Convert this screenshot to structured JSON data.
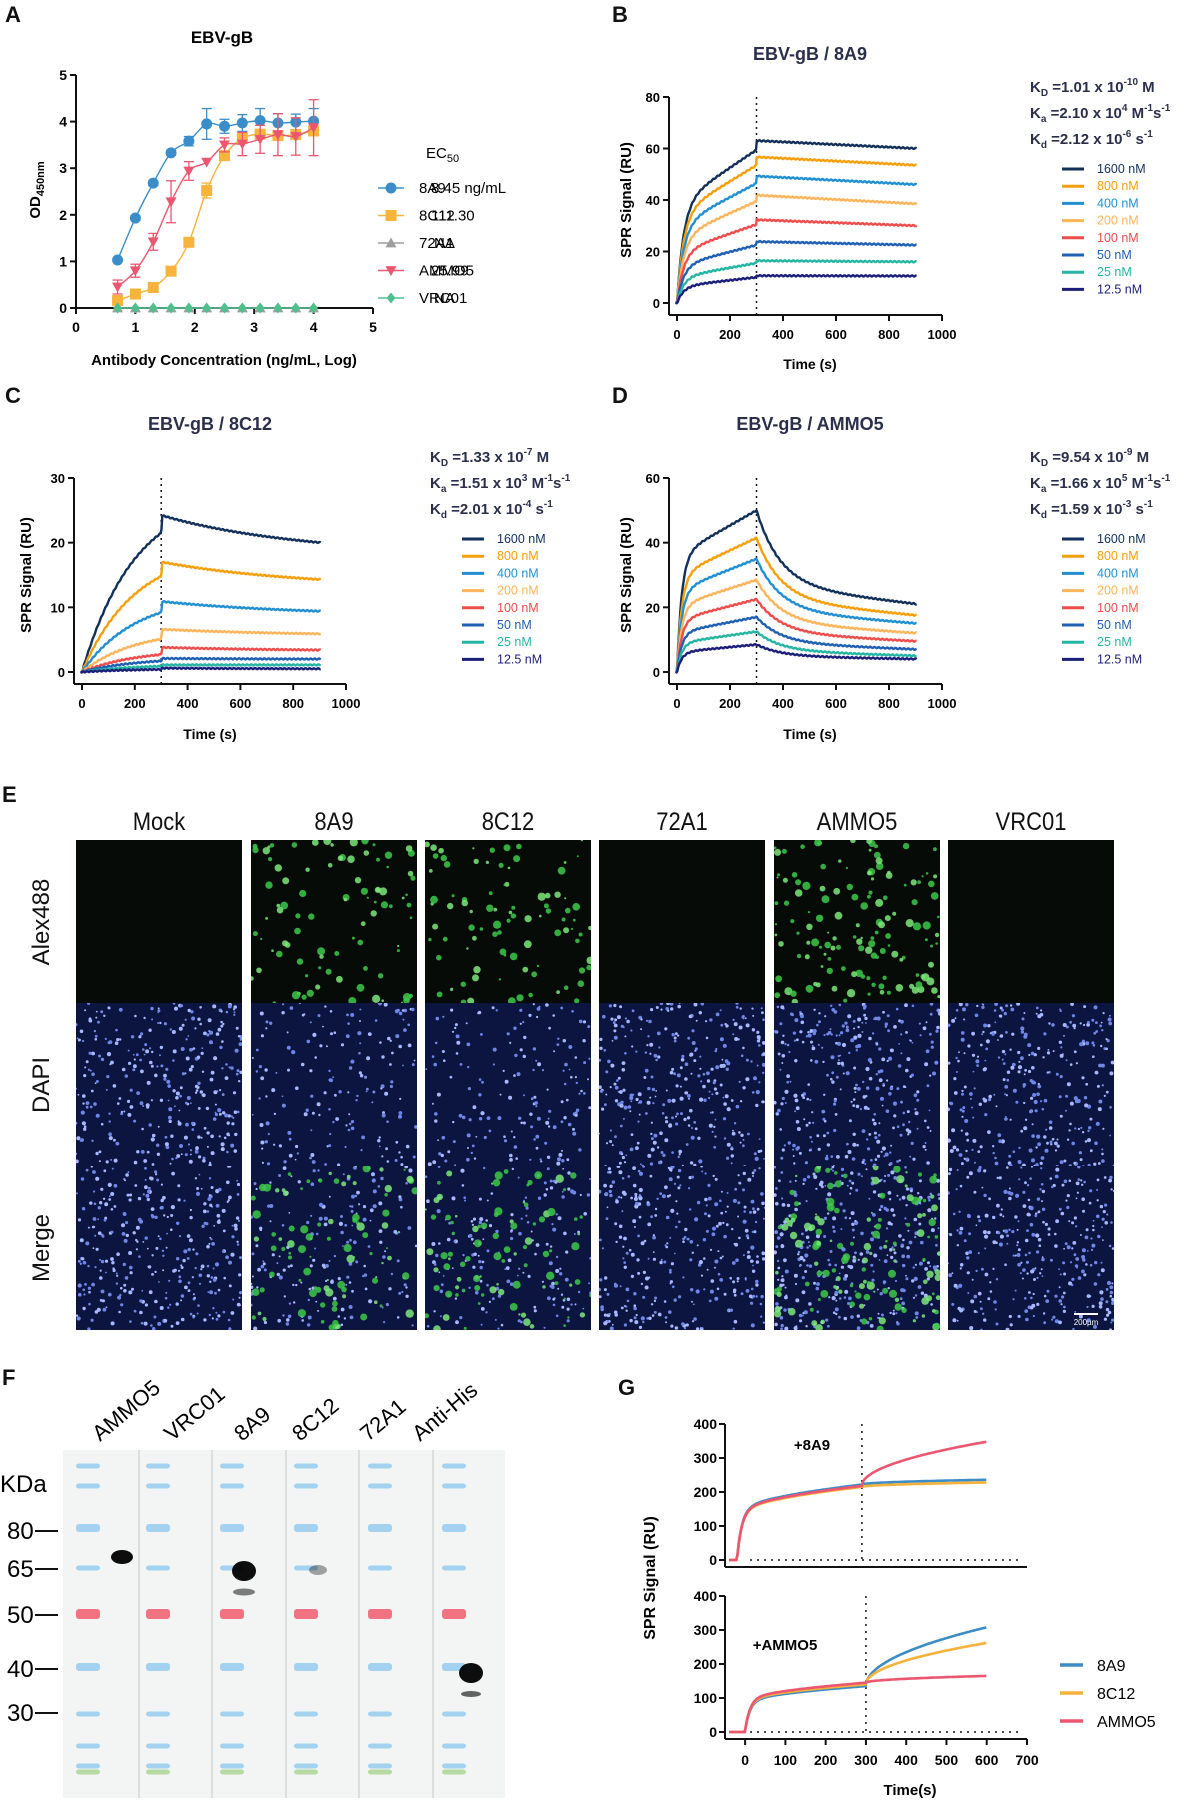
{
  "panels": {
    "A": "A",
    "B": "B",
    "C": "C",
    "D": "D",
    "E": "E",
    "F": "F",
    "G": "G"
  },
  "chart_data": [
    {
      "id": "A",
      "type": "scatter",
      "title": "EBV-gB",
      "xlabel": "Antibody Concentration (ng/mL, Log)",
      "ylabel": "OD",
      "ylabel_sub": "450nm",
      "xlim": [
        0,
        5
      ],
      "ylim": [
        0,
        5
      ],
      "xticks": [
        0,
        1,
        2,
        3,
        4,
        5
      ],
      "yticks": [
        0,
        1,
        2,
        3,
        4,
        5
      ],
      "legend_header": "EC",
      "legend_header_sub": "50",
      "legend_position": "right",
      "x": [
        0.7,
        1.0,
        1.3,
        1.6,
        1.9,
        2.2,
        2.5,
        2.8,
        3.1,
        3.4,
        3.7,
        4.0
      ],
      "series": [
        {
          "name": "8A9",
          "marker": "circle",
          "color": "#3b8dc9",
          "ec50": "8.45 ng/mL",
          "values": [
            1.03,
            1.93,
            2.68,
            3.33,
            3.58,
            3.95,
            3.9,
            3.97,
            4.02,
            3.97,
            3.99,
            4.01
          ],
          "errors": [
            0,
            0.05,
            0.05,
            0.05,
            0.1,
            0.33,
            0.15,
            0.18,
            0.26,
            0.2,
            0.17,
            0.27
          ]
        },
        {
          "name": "8C12",
          "marker": "square",
          "color": "#f7b33b",
          "ec50": "111.30",
          "values": [
            0.16,
            0.3,
            0.44,
            0.79,
            1.41,
            2.52,
            3.27,
            3.64,
            3.73,
            3.7,
            3.72,
            3.8
          ],
          "errors": [
            0,
            0,
            0,
            0,
            0,
            0.16,
            0.1,
            0.1,
            0.1,
            0.1,
            0.1,
            0.1
          ]
        },
        {
          "name": "72A1",
          "marker": "triangle-up",
          "color": "#9e9e9e",
          "ec50": "NA",
          "values": [
            0,
            0,
            0,
            0,
            0,
            0,
            0,
            0,
            0,
            0,
            0,
            0
          ],
          "errors": [
            0,
            0,
            0,
            0,
            0,
            0,
            0,
            0,
            0,
            0,
            0,
            0
          ]
        },
        {
          "name": "AMMO5",
          "marker": "triangle-down",
          "color": "#ec5670",
          "ec50": "25.99",
          "values": [
            0.45,
            0.8,
            1.42,
            2.28,
            2.94,
            3.13,
            3.5,
            3.52,
            3.62,
            3.72,
            3.68,
            3.87
          ],
          "errors": [
            0.15,
            0.14,
            0.18,
            0.45,
            0.2,
            0,
            0.15,
            0.25,
            0.3,
            0.45,
            0.4,
            0.6
          ]
        },
        {
          "name": "VRC01",
          "marker": "diamond",
          "color": "#4fc08d",
          "ec50": "NA",
          "values": [
            0,
            0,
            0,
            0,
            0,
            0,
            0,
            0,
            0,
            0,
            0,
            0
          ],
          "errors": [
            0,
            0,
            0,
            0,
            0,
            0,
            0,
            0,
            0,
            0,
            0,
            0
          ]
        }
      ]
    },
    {
      "id": "B",
      "type": "line",
      "title": "EBV-gB / 8A9",
      "xlabel": "Time (s)",
      "ylabel": "SPR Signal (RU)",
      "xlim": [
        0,
        1000
      ],
      "ylim": [
        0,
        80
      ],
      "xticks": [
        0,
        200,
        400,
        600,
        800,
        1000
      ],
      "yticks": [
        0,
        20,
        40,
        60,
        80
      ],
      "injection_end": 300,
      "kinetics": {
        "KD": "=1.01 x 10",
        "KD_exp": "-10",
        "KD_unit": " M",
        "Ka": "=2.10 x 10",
        "Ka_exp": "4",
        "Ka_unit": " M",
        "Ka_unit_exp1": "-1",
        "Ka_unit2": "s",
        "Ka_unit_exp2": "-1",
        "Kd": "=2.12 x 10",
        "Kd_exp": "-6",
        "Kd_unit": " s",
        "Kd_unit_exp": "-1"
      },
      "model": "fast",
      "series": [
        {
          "name": "1600 nM",
          "color": "#12305a",
          "plateau": 59.5,
          "end": 60
        },
        {
          "name": "800 nM",
          "color": "#f59f0b",
          "plateau": 53.5,
          "end": 53.5
        },
        {
          "name": "400 nM",
          "color": "#2190d3",
          "plateau": 46.5,
          "end": 46
        },
        {
          "name": "200 nM",
          "color": "#fdb55b",
          "plateau": 39.5,
          "end": 38.5
        },
        {
          "name": "100 nM",
          "color": "#ef4c4c",
          "plateau": 30.5,
          "end": 30
        },
        {
          "name": "50 nM",
          "color": "#1f5fb4",
          "plateau": 22.5,
          "end": 22.5
        },
        {
          "name": "25 nM",
          "color": "#25b6a3",
          "plateau": 15.5,
          "end": 16
        },
        {
          "name": "12.5 nM",
          "color": "#1c1f7a",
          "plateau": 10,
          "end": 10.5
        }
      ]
    },
    {
      "id": "C",
      "type": "line",
      "title": "EBV-gB / 8C12",
      "xlabel": "Time (s)",
      "ylabel": "SPR Signal (RU)",
      "xlim": [
        0,
        1000
      ],
      "ylim": [
        0,
        30
      ],
      "xticks": [
        0,
        200,
        400,
        600,
        800,
        1000
      ],
      "yticks": [
        0,
        10,
        20,
        30
      ],
      "injection_end": 300,
      "kinetics": {
        "KD": "=1.33 x 10",
        "KD_exp": "-7",
        "KD_unit": " M",
        "Ka": "=1.51 x 10",
        "Ka_exp": "3",
        "Ka_unit": " M",
        "Ka_unit_exp1": "-1",
        "Ka_unit2": "s",
        "Ka_unit_exp2": "-1",
        "Kd": "=2.01 x 10",
        "Kd_exp": "-4",
        "Kd_unit": " s",
        "Kd_unit_exp": "-1"
      },
      "model": "slow",
      "series": [
        {
          "name": "1600 nM",
          "color": "#12305a",
          "plateau": 21.5,
          "peak": 24.2,
          "end": 20
        },
        {
          "name": "800 nM",
          "color": "#f59f0b",
          "plateau": 14.8,
          "peak": 17,
          "end": 14.3
        },
        {
          "name": "400 nM",
          "color": "#2190d3",
          "plateau": 9.2,
          "peak": 10.9,
          "end": 9.4
        },
        {
          "name": "200 nM",
          "color": "#fdb55b",
          "plateau": 5.1,
          "peak": 6.6,
          "end": 5.9
        },
        {
          "name": "100 nM",
          "color": "#ef4c4c",
          "plateau": 2.7,
          "peak": 3.8,
          "end": 3.4
        },
        {
          "name": "50 nM",
          "color": "#1f5fb4",
          "plateau": 1.7,
          "peak": 2.1,
          "end": 2.0
        },
        {
          "name": "25 nM",
          "color": "#25b6a3",
          "plateau": 0.9,
          "peak": 1.1,
          "end": 1.1
        },
        {
          "name": "12.5 nM",
          "color": "#1c1f7a",
          "plateau": 0.4,
          "peak": 0.6,
          "end": 0.5
        }
      ]
    },
    {
      "id": "D",
      "type": "line",
      "title": "EBV-gB / AMMO5",
      "xlabel": "Time (s)",
      "ylabel": "SPR Signal (RU)",
      "xlim": [
        0,
        1000
      ],
      "ylim": [
        0,
        60
      ],
      "xticks": [
        0,
        200,
        400,
        600,
        800,
        1000
      ],
      "yticks": [
        0,
        20,
        40,
        60
      ],
      "injection_end": 300,
      "kinetics": {
        "KD": "=9.54 x 10",
        "KD_exp": "-9",
        "KD_unit": " M",
        "Ka": "=1.66 x 10",
        "Ka_exp": "5",
        "Ka_unit": " M",
        "Ka_unit_exp1": "-1",
        "Ka_unit2": "s",
        "Ka_unit_exp2": "-1",
        "Kd": "=1.59 x 10",
        "Kd_exp": "-3",
        "Kd_unit": " s",
        "Kd_unit_exp": "-1"
      },
      "model": "dissoc",
      "series": [
        {
          "name": "1600 nM",
          "color": "#12305a",
          "plateau": 50,
          "end": 21
        },
        {
          "name": "800 nM",
          "color": "#f59f0b",
          "plateau": 41.5,
          "end": 17.5
        },
        {
          "name": "400 nM",
          "color": "#2190d3",
          "plateau": 35,
          "end": 15
        },
        {
          "name": "200 nM",
          "color": "#fdb55b",
          "plateau": 28.5,
          "end": 12
        },
        {
          "name": "100 nM",
          "color": "#ef4c4c",
          "plateau": 22.5,
          "end": 9.5
        },
        {
          "name": "50 nM",
          "color": "#1f5fb4",
          "plateau": 17,
          "end": 7
        },
        {
          "name": "25 nM",
          "color": "#25b6a3",
          "plateau": 12.5,
          "end": 5
        },
        {
          "name": "12.5 nM",
          "color": "#1c1f7a",
          "plateau": 8.5,
          "end": 4
        }
      ]
    },
    {
      "id": "G",
      "type": "line",
      "xlabel": "Time(s)",
      "ylabel": "SPR Signal (RU)",
      "xlim": [
        -50,
        700
      ],
      "ylim": [
        0,
        400
      ],
      "xticks": [
        0,
        100,
        200,
        300,
        400,
        500,
        600,
        700
      ],
      "yticks": [
        0,
        100,
        200,
        300,
        400
      ],
      "legend_position": "bottom-right",
      "subplots": [
        {
          "annotation": "+8A9",
          "start": -20,
          "switch": 290,
          "series": [
            {
              "name": "8A9",
              "color": "#3c8cc6",
              "first": 222,
              "second": 236
            },
            {
              "name": "8C12",
              "color": "#f5b13a",
              "first": 215,
              "second": 228
            },
            {
              "name": "AMMO5",
              "color": "#ec5670",
              "first": 218,
              "second": 348
            }
          ]
        },
        {
          "annotation": "+AMMO5",
          "start": 0,
          "switch": 300,
          "series": [
            {
              "name": "8A9",
              "color": "#3c8cc6",
              "first": 135,
              "second": 308
            },
            {
              "name": "8C12",
              "color": "#f5b13a",
              "first": 140,
              "second": 262
            },
            {
              "name": "AMMO5",
              "color": "#ec5670",
              "first": 145,
              "second": 165
            }
          ]
        }
      ]
    }
  ],
  "microscopy": {
    "columns": [
      "Mock",
      "8A9",
      "8C12",
      "72A1",
      "AMMO5",
      "VRC01"
    ],
    "rows": [
      "Alex488",
      "DAPI",
      "Merge"
    ],
    "green_positive": [
      false,
      true,
      true,
      false,
      true,
      false
    ],
    "scale_bar": "200µm"
  },
  "western_blot": {
    "lanes": [
      "AMMO5",
      "VRC01",
      "8A9",
      "8C12",
      "72A1",
      "Anti-His"
    ],
    "unit": "KDa",
    "markers": [
      "80",
      "65",
      "50",
      "40",
      "30"
    ]
  }
}
